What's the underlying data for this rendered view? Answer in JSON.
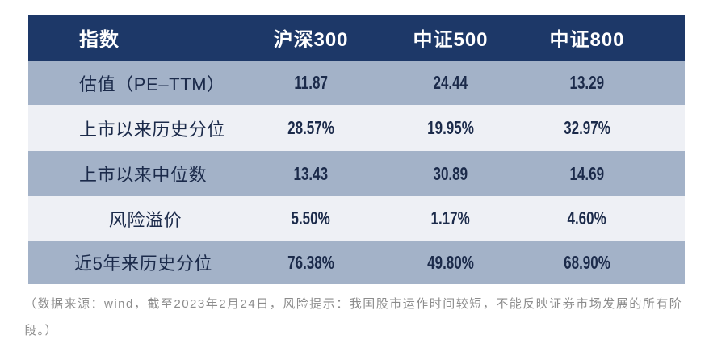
{
  "chart_data": {
    "type": "table",
    "columns": [
      "指数",
      "沪深300",
      "中证500",
      "中证800"
    ],
    "rows": [
      {
        "label": "估值（PE–TTM）",
        "values": [
          "11.87",
          "24.44",
          "13.29"
        ]
      },
      {
        "label": "上市以来历史分位",
        "values": [
          "28.57%",
          "19.95%",
          "32.97%"
        ]
      },
      {
        "label": "上市以来中位数",
        "values": [
          "13.43",
          "30.89",
          "14.69"
        ]
      },
      {
        "label": "风险溢价",
        "values": [
          "5.50%",
          "1.17%",
          "4.60%"
        ]
      },
      {
        "label": "近5年来历史分位",
        "values": [
          "76.38%",
          "49.80%",
          "68.90%"
        ]
      }
    ]
  },
  "note": "（数据来源：wind，截至2023年2月24日，风险提示：我国股市运作时间较短，不能反映证券市场发展的所有阶段。）",
  "colors": {
    "header_bg": "#1d3868",
    "row_dark": "#a3b2c8",
    "row_light": "#eef0f5",
    "text_dark": "#1b2a4a",
    "note_text": "#8c8c8c"
  }
}
